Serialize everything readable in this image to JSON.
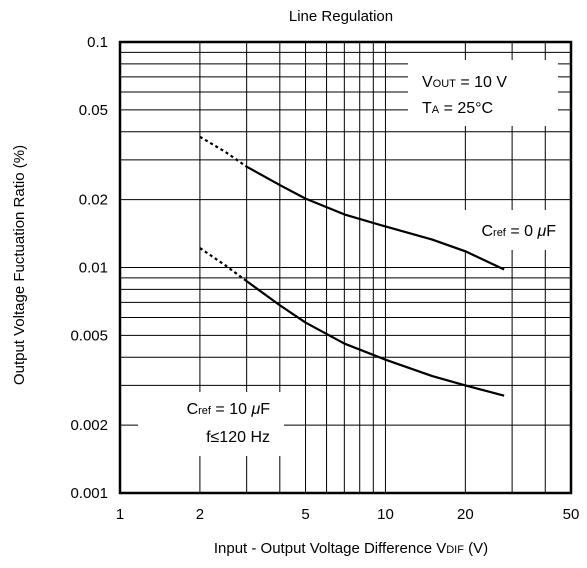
{
  "chart_data": {
    "type": "line",
    "title": "Line Regulation",
    "xlabel": "Input - Output Voltage Difference VDIF (V)",
    "xlabel_parts": {
      "pre": "Input - Output Voltage Difference V",
      "sub": "DIF",
      "post": " (V)"
    },
    "ylabel": "Output Voltage Fuctuation Ratio (%)",
    "x_scale": "log",
    "y_scale": "log",
    "xlim": [
      1,
      50
    ],
    "ylim": [
      0.001,
      0.1
    ],
    "grid": true,
    "x_ticks": [
      {
        "value": 1,
        "label": "1"
      },
      {
        "value": 2,
        "label": "2"
      },
      {
        "value": 5,
        "label": "5"
      },
      {
        "value": 10,
        "label": "10"
      },
      {
        "value": 20,
        "label": "20"
      },
      {
        "value": 50,
        "label": "50"
      }
    ],
    "y_ticks": [
      {
        "value": 0.001,
        "label": "0.001"
      },
      {
        "value": 0.002,
        "label": "0.002"
      },
      {
        "value": 0.005,
        "label": "0.005"
      },
      {
        "value": 0.01,
        "label": "0.01"
      },
      {
        "value": 0.02,
        "label": "0.02"
      },
      {
        "value": 0.05,
        "label": "0.05"
      },
      {
        "value": 0.1,
        "label": "0.1"
      }
    ],
    "conditions": {
      "vout": {
        "pre": "V",
        "sub": "OUT",
        "post": " = 10 V"
      },
      "ta": {
        "pre": "T",
        "sub": "A",
        "post": " = 25°C"
      }
    },
    "series": [
      {
        "label": {
          "pre": "C",
          "sub": "ref",
          "post": " = 0 ",
          "unit_italic": "μ",
          "unit_tail": "F"
        },
        "dashed_x": [
          2,
          2.5,
          3
        ],
        "dashed_y": [
          0.038,
          0.0325,
          0.028
        ],
        "x": [
          3,
          4,
          5,
          7,
          10,
          15,
          20,
          28
        ],
        "y": [
          0.028,
          0.0232,
          0.0202,
          0.0172,
          0.0152,
          0.0133,
          0.0118,
          0.0098
        ]
      },
      {
        "label": {
          "pre": "C",
          "sub": "ref",
          "post": " = 10 ",
          "unit_italic": "μ",
          "unit_tail": "F",
          "line2": "f≤120 Hz"
        },
        "dashed_x": [
          2,
          2.5,
          3
        ],
        "dashed_y": [
          0.0122,
          0.0102,
          0.0087
        ],
        "x": [
          3,
          4,
          5,
          7,
          10,
          15,
          20,
          28
        ],
        "y": [
          0.0087,
          0.0068,
          0.0057,
          0.0046,
          0.0039,
          0.0033,
          0.003,
          0.0027
        ]
      }
    ]
  }
}
